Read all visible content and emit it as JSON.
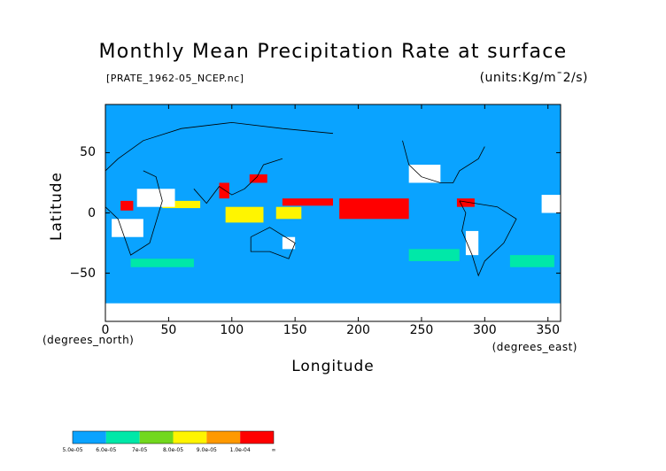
{
  "chart_data": {
    "type": "heatmap",
    "title": "Monthly Mean Precipitation Rate at surface",
    "file_label": "[PRATE_1962-05_NCEP.nc]",
    "units_label": "(units:Kg/m¯2/s)",
    "xlabel": "Longitude",
    "ylabel": "Latitude",
    "x_unit_label": "(degrees_east)",
    "y_unit_label": "(degrees_north)",
    "xlim": [
      0,
      360
    ],
    "ylim": [
      -90,
      90
    ],
    "x_ticks": [
      0,
      50,
      100,
      150,
      200,
      250,
      300,
      350
    ],
    "y_ticks": [
      50,
      0,
      -50
    ],
    "colorbar": {
      "labels": [
        "5.0e-05",
        "6.0e-05",
        "7e-05",
        "8.0e-05",
        "9.0e-05",
        "1.0e-04",
        "∞"
      ],
      "colors": [
        "#0aa3ff",
        "#00e8a8",
        "#72d81e",
        "#fff500",
        "#ff9900",
        "#ff0000"
      ]
    },
    "regions": [
      {
        "level": "low",
        "lon": [
          0,
          360
        ],
        "lat": [
          -90,
          90
        ]
      },
      {
        "level": "max",
        "lon": [
          12,
          22
        ],
        "lat": [
          2,
          10
        ]
      },
      {
        "level": "max",
        "lon": [
          140,
          180
        ],
        "lat": [
          6,
          12
        ]
      },
      {
        "level": "max",
        "lon": [
          185,
          240
        ],
        "lat": [
          -5,
          12
        ]
      },
      {
        "level": "max",
        "lon": [
          278,
          292
        ],
        "lat": [
          5,
          12
        ]
      },
      {
        "level": "max",
        "lon": [
          90,
          98
        ],
        "lat": [
          12,
          25
        ]
      },
      {
        "level": "max",
        "lon": [
          114,
          128
        ],
        "lat": [
          25,
          32
        ]
      },
      {
        "level": "high",
        "lon": [
          45,
          75
        ],
        "lat": [
          4,
          10
        ]
      },
      {
        "level": "high",
        "lon": [
          95,
          125
        ],
        "lat": [
          -8,
          5
        ]
      },
      {
        "level": "high",
        "lon": [
          135,
          155
        ],
        "lat": [
          -5,
          5
        ]
      },
      {
        "level": "mid",
        "lon": [
          240,
          280
        ],
        "lat": [
          -40,
          -30
        ]
      },
      {
        "level": "mid",
        "lon": [
          320,
          355
        ],
        "lat": [
          -45,
          -35
        ]
      },
      {
        "level": "mid",
        "lon": [
          20,
          70
        ],
        "lat": [
          -45,
          -38
        ]
      }
    ],
    "no_data_regions": [
      {
        "lon": [
          5,
          30
        ],
        "lat": [
          -20,
          -5
        ]
      },
      {
        "lon": [
          25,
          55
        ],
        "lat": [
          5,
          20
        ]
      },
      {
        "lon": [
          140,
          150
        ],
        "lat": [
          -30,
          -20
        ]
      },
      {
        "lon": [
          285,
          295
        ],
        "lat": [
          -35,
          -15
        ]
      },
      {
        "lon": [
          240,
          265
        ],
        "lat": [
          25,
          40
        ]
      },
      {
        "lon": [
          345,
          360
        ],
        "lat": [
          0,
          15
        ]
      },
      {
        "lon": [
          0,
          360
        ],
        "lat": [
          -90,
          -75
        ]
      }
    ],
    "grid": false,
    "legend_placement": "bottom-left"
  }
}
